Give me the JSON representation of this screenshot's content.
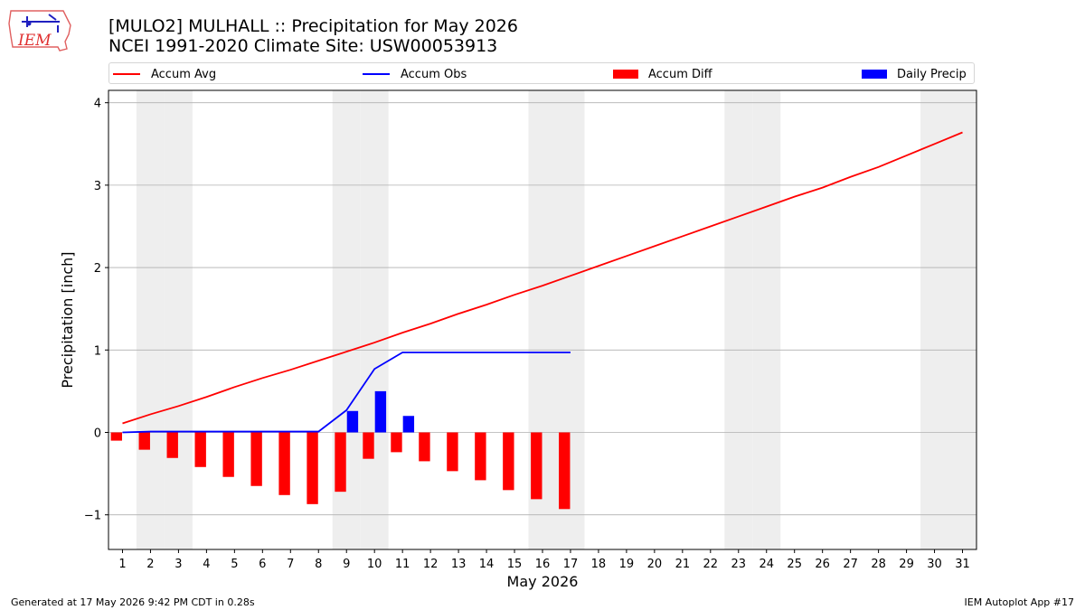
{
  "header": {
    "title_line1": "[MULO2] MULHALL :: Precipitation for May 2026",
    "title_line2": "NCEI 1991-2020 Climate Site: USW00053913",
    "logo_text": "IEM"
  },
  "footer": {
    "generated": "Generated at 17 May 2026 9:42 PM CDT in 0.28s",
    "app": "IEM Autoplot App #17"
  },
  "colors": {
    "accum_avg": "#ff0000",
    "accum_obs": "#0000ff",
    "accum_diff": "#ff0000",
    "daily_precip": "#0000ff",
    "weekend_shade": "#eeeeee",
    "grid": "#b0b0b0"
  },
  "chart_data": {
    "type": "bar",
    "xlabel": "May 2026",
    "ylabel": "Precipitation [inch]",
    "xlim": [
      0.5,
      31.5
    ],
    "ylim": [
      -1.42,
      4.15
    ],
    "yticks": [
      -1,
      0,
      1,
      2,
      3,
      4
    ],
    "ytick_labels": [
      "−1",
      "0",
      "1",
      "2",
      "3",
      "4"
    ],
    "xticks": [
      1,
      2,
      3,
      4,
      5,
      6,
      7,
      8,
      9,
      10,
      11,
      12,
      13,
      14,
      15,
      16,
      17,
      18,
      19,
      20,
      21,
      22,
      23,
      24,
      25,
      26,
      27,
      28,
      29,
      30,
      31
    ],
    "grid": "horizontal",
    "legend_position": "top",
    "weekend_days": [
      2,
      3,
      9,
      10,
      16,
      17,
      23,
      24,
      30,
      31
    ],
    "series": [
      {
        "name": "Accum Avg",
        "kind": "line",
        "x": [
          1,
          2,
          3,
          4,
          5,
          6,
          7,
          8,
          9,
          10,
          11,
          12,
          13,
          14,
          15,
          16,
          17,
          18,
          19,
          20,
          21,
          22,
          23,
          24,
          25,
          26,
          27,
          28,
          29,
          30,
          31
        ],
        "values": [
          0.11,
          0.22,
          0.32,
          0.43,
          0.55,
          0.66,
          0.76,
          0.87,
          0.98,
          1.09,
          1.21,
          1.32,
          1.44,
          1.55,
          1.67,
          1.78,
          1.9,
          2.02,
          2.14,
          2.26,
          2.38,
          2.5,
          2.62,
          2.74,
          2.86,
          2.97,
          3.1,
          3.22,
          3.36,
          3.5,
          3.64
        ]
      },
      {
        "name": "Accum Obs",
        "kind": "line",
        "x": [
          1,
          2,
          3,
          4,
          5,
          6,
          7,
          8,
          9,
          10,
          11,
          12,
          13,
          14,
          15,
          16,
          17
        ],
        "values": [
          0,
          0.01,
          0.01,
          0.01,
          0.01,
          0.01,
          0.01,
          0.01,
          0.27,
          0.77,
          0.97,
          0.97,
          0.97,
          0.97,
          0.97,
          0.97,
          0.97
        ]
      },
      {
        "name": "Accum Diff",
        "kind": "bar",
        "x": [
          1,
          2,
          3,
          4,
          5,
          6,
          7,
          8,
          9,
          10,
          11,
          12,
          13,
          14,
          15,
          16,
          17
        ],
        "values": [
          -0.1,
          -0.21,
          -0.31,
          -0.42,
          -0.54,
          -0.65,
          -0.76,
          -0.87,
          -0.72,
          -0.32,
          -0.24,
          -0.35,
          -0.47,
          -0.58,
          -0.7,
          -0.81,
          -0.93
        ]
      },
      {
        "name": "Daily Precip",
        "kind": "bar",
        "x": [
          1,
          2,
          3,
          4,
          5,
          6,
          7,
          8,
          9,
          10,
          11,
          12,
          13,
          14,
          15,
          16,
          17
        ],
        "values": [
          0,
          0.01,
          0,
          0,
          0,
          0,
          0,
          0,
          0.26,
          0.5,
          0.2,
          0,
          0,
          0,
          0,
          0,
          0
        ]
      }
    ]
  }
}
